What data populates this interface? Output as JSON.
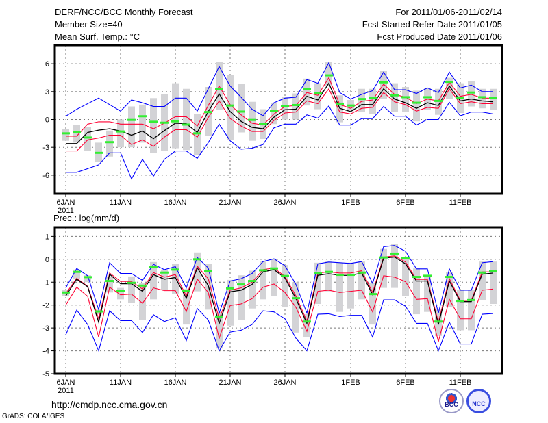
{
  "header": {
    "title": "DERF/NCC/BCC Monthly Forecast",
    "member_size": "Member Size=40",
    "variable": "Mean Surf. Temp.: °C",
    "period": "For 2011/01/06-2011/02/14",
    "started": "Fcst Started Refer Date 2011/01/05",
    "produced": "Fcst Produced Date 2011/01/06"
  },
  "footer": {
    "url": "http://cmdp.ncc.cma.gov.cn",
    "credit": "GrADS: COLA/IGES",
    "logo_bcc": "BCC",
    "logo_ncc": "NCC"
  },
  "colors": {
    "mean": "#000000",
    "spread": "#ff0033",
    "extreme": "#0000ff",
    "obs": "#33ee33",
    "box": "#d3d3d6"
  },
  "chart_data": [
    {
      "type": "line",
      "title": "Mean Surf. Temp.: °C",
      "ylabel": "",
      "ylim": [
        -8,
        8
      ],
      "yticks": [
        -6,
        -3,
        0,
        3,
        6
      ],
      "xtick_labels": [
        "6JAN",
        "11JAN",
        "16JAN",
        "21JAN",
        "26JAN",
        "1FEB",
        "6FEB",
        "11FEB"
      ],
      "xtick_days": [
        0,
        5,
        10,
        15,
        20,
        26,
        31,
        36
      ],
      "year_label": "2011",
      "grid": true,
      "series": [
        {
          "name": "max",
          "color": "extreme",
          "values": [
            0.35,
            1.1,
            1.7,
            2.3,
            1.6,
            0.9,
            2.1,
            1.8,
            1.4,
            1.4,
            2.3,
            2.3,
            0.9,
            3.3,
            5.7,
            3.6,
            2.4,
            1.1,
            0.4,
            1.8,
            2.3,
            2.4,
            4.3,
            3.9,
            6.1,
            2.9,
            2.2,
            2.7,
            3.1,
            5.1,
            3.2,
            3.2,
            2.8,
            3.4,
            2.9,
            5.1,
            3.4,
            3.7,
            3.0,
            3.0
          ]
        },
        {
          "name": "mean+sd",
          "color": "spread",
          "values": [
            -1.8,
            -1.8,
            -0.5,
            -0.25,
            -0.25,
            -0.5,
            -0.5,
            -0.5,
            -1.0,
            -0.4,
            0.3,
            0.3,
            -0.7,
            1.5,
            3.6,
            1.6,
            0.5,
            -0.4,
            -0.6,
            0.6,
            1.4,
            1.5,
            2.9,
            2.6,
            4.5,
            1.6,
            1.2,
            1.95,
            2.1,
            3.8,
            2.7,
            2.4,
            1.7,
            2.2,
            2.0,
            4.0,
            2.5,
            2.7,
            2.3,
            2.3
          ]
        },
        {
          "name": "mean",
          "color": "mean",
          "values": [
            -2.6,
            -2.6,
            -1.4,
            -1.15,
            -1.0,
            -1.25,
            -1.7,
            -1.25,
            -2.07,
            -1.2,
            -0.4,
            -0.45,
            -1.4,
            0.85,
            2.75,
            0.85,
            -0.2,
            -0.85,
            -1.0,
            0.25,
            1.05,
            1.1,
            2.5,
            2.1,
            3.9,
            1.2,
            0.85,
            1.6,
            1.6,
            3.3,
            2.2,
            1.8,
            1.2,
            1.8,
            1.5,
            3.6,
            2.0,
            2.2,
            2.0,
            1.9
          ]
        },
        {
          "name": "mean-sd",
          "color": "spread",
          "values": [
            -3.4,
            -3.4,
            -2.2,
            -2.0,
            -1.7,
            -1.7,
            -2.7,
            -2.2,
            -2.9,
            -1.9,
            -1.1,
            -1.1,
            -1.9,
            0.2,
            2.0,
            0.1,
            -0.7,
            -1.3,
            -1.3,
            -0.1,
            0.7,
            0.8,
            2.0,
            1.7,
            3.3,
            0.8,
            0.6,
            1.2,
            1.3,
            2.9,
            1.9,
            1.6,
            0.9,
            1.3,
            1.2,
            3.3,
            1.7,
            1.9,
            1.7,
            1.7
          ]
        },
        {
          "name": "min",
          "color": "extreme",
          "values": [
            -5.7,
            -5.7,
            -5.3,
            -4.9,
            -3.6,
            -3.6,
            -6.4,
            -4.3,
            -6.1,
            -4.3,
            -3.4,
            -3.4,
            -4.2,
            -2.5,
            -0.5,
            -2.3,
            -3.2,
            -3.1,
            -2.7,
            -0.9,
            -0.5,
            -0.5,
            0.5,
            0.15,
            1.45,
            -0.6,
            -0.6,
            0.1,
            0.1,
            1.4,
            0.35,
            0.35,
            -0.6,
            0.0,
            0.0,
            1.85,
            0.4,
            0.8,
            0.8,
            0.6
          ]
        }
      ],
      "markers": [
        -1.5,
        -1.4,
        -1.95,
        -3.6,
        -2.45,
        -1.3,
        -0.05,
        0.35,
        -0.25,
        -0.35,
        -0.2,
        -0.55,
        -1.5,
        0.8,
        3.3,
        1.5,
        0.85,
        -0.05,
        -0.5,
        0.95,
        1.4,
        1.55,
        3.3,
        2.8,
        4.75,
        1.7,
        1.5,
        2.2,
        2.3,
        4.0,
        2.6,
        2.4,
        1.8,
        2.4,
        2.0,
        4.05,
        2.3,
        2.9,
        2.4,
        2.3
      ],
      "ranges": [
        [
          -2.3,
          -1.0
        ],
        [
          -2.5,
          -0.6
        ],
        [
          -3.4,
          -0.8
        ],
        [
          -4.6,
          -2.5
        ],
        [
          -4.0,
          -1.2
        ],
        [
          -3.0,
          0.0
        ],
        [
          -3.0,
          1.4
        ],
        [
          -2.5,
          1.6
        ],
        [
          -3.6,
          2.3
        ],
        [
          -3.4,
          2.7
        ],
        [
          -3.1,
          3.9
        ],
        [
          -3.3,
          3.3
        ],
        [
          -3.8,
          0.6
        ],
        [
          -1.8,
          3.5
        ],
        [
          1.0,
          6.2
        ],
        [
          -2.2,
          4.8
        ],
        [
          -1.4,
          3.8
        ],
        [
          -2.3,
          1.9
        ],
        [
          -2.1,
          1.1
        ],
        [
          -0.5,
          1.8
        ],
        [
          0.0,
          2.4
        ],
        [
          0.0,
          2.8
        ],
        [
          1.5,
          4.4
        ],
        [
          1.1,
          3.9
        ],
        [
          3.6,
          6.2
        ],
        [
          -0.3,
          2.6
        ],
        [
          0.9,
          2.1
        ],
        [
          0.8,
          3.3
        ],
        [
          0.6,
          3.3
        ],
        [
          2.2,
          5.2
        ],
        [
          0.8,
          3.9
        ],
        [
          0.8,
          3.5
        ],
        [
          -0.2,
          3.1
        ],
        [
          1.0,
          3.4
        ],
        [
          0.5,
          3.3
        ],
        [
          2.2,
          4.5
        ],
        [
          0.7,
          3.9
        ],
        [
          1.4,
          4.1
        ],
        [
          1.2,
          3.3
        ],
        [
          1.0,
          3.3
        ]
      ]
    },
    {
      "type": "line",
      "title": "Prec.: log(mm/d)",
      "ylabel": "",
      "ylim": [
        -5,
        1.4
      ],
      "yticks": [
        -5,
        -4,
        -3,
        -2,
        -1,
        0,
        1
      ],
      "xtick_labels": [
        "6JAN",
        "11JAN",
        "16JAN",
        "21JAN",
        "26JAN",
        "1FEB",
        "6FEB",
        "11FEB"
      ],
      "xtick_days": [
        0,
        5,
        10,
        15,
        20,
        26,
        31,
        36
      ],
      "year_label": "2011",
      "grid": true,
      "series": [
        {
          "name": "max",
          "color": "extreme",
          "values": [
            -1.25,
            -0.4,
            -0.72,
            -2.2,
            -0.15,
            -0.62,
            -0.62,
            -0.92,
            -0.22,
            -0.45,
            -0.32,
            -1.25,
            0.08,
            -0.38,
            -2.35,
            -0.95,
            -0.85,
            -0.62,
            -0.1,
            0.02,
            -0.28,
            -1.1,
            -2.35,
            -0.2,
            -0.12,
            -0.15,
            -0.18,
            -0.1,
            -1.05,
            0.55,
            0.6,
            0.35,
            -0.42,
            -0.42,
            -2.35,
            -0.42,
            -1.35,
            -1.35,
            -0.15,
            -0.1
          ]
        },
        {
          "name": "mean+sd",
          "color": "spread",
          "values": [
            -1.5,
            -0.83,
            -1.18,
            -2.6,
            -0.6,
            -0.97,
            -0.97,
            -1.3,
            -0.58,
            -0.78,
            -0.67,
            -1.6,
            -0.3,
            -0.85,
            -2.6,
            -1.35,
            -1.25,
            -1.0,
            -0.45,
            -0.38,
            -0.75,
            -1.6,
            -2.7,
            -0.6,
            -0.55,
            -0.6,
            -0.6,
            -0.5,
            -1.45,
            0.1,
            0.15,
            -0.12,
            -0.88,
            -0.88,
            -2.75,
            -0.85,
            -1.8,
            -1.8,
            -0.55,
            -0.55
          ]
        },
        {
          "name": "mean",
          "color": "mean",
          "values": [
            -1.6,
            -0.87,
            -1.2,
            -2.75,
            -0.65,
            -1.07,
            -1.07,
            -1.4,
            -0.67,
            -0.87,
            -0.8,
            -1.7,
            -0.37,
            -1.15,
            -2.8,
            -1.42,
            -1.35,
            -1.1,
            -0.55,
            -0.45,
            -0.82,
            -1.72,
            -2.8,
            -0.7,
            -0.63,
            -0.7,
            -0.7,
            -0.6,
            -1.55,
            0.05,
            0.1,
            -0.2,
            -0.95,
            -0.95,
            -2.85,
            -0.95,
            -1.85,
            -1.85,
            -0.65,
            -0.6
          ]
        },
        {
          "name": "mean-sd",
          "color": "spread",
          "values": [
            -2.0,
            -1.22,
            -1.62,
            -3.4,
            -1.22,
            -1.55,
            -1.52,
            -1.92,
            -1.25,
            -1.37,
            -1.37,
            -2.28,
            -0.87,
            -1.45,
            -3.45,
            -2.02,
            -1.95,
            -1.72,
            -1.22,
            -1.08,
            -1.45,
            -2.1,
            -3.15,
            -1.4,
            -1.35,
            -1.45,
            -1.4,
            -1.35,
            -2.3,
            -0.72,
            -0.78,
            -0.98,
            -1.75,
            -1.72,
            -3.6,
            -1.75,
            -2.6,
            -2.6,
            -1.35,
            -1.3
          ]
        },
        {
          "name": "min",
          "color": "extreme",
          "values": [
            -3.3,
            -2.22,
            -2.85,
            -4.0,
            -2.25,
            -2.68,
            -2.68,
            -3.2,
            -2.42,
            -2.72,
            -2.55,
            -3.55,
            -2.15,
            -2.65,
            -4.0,
            -3.18,
            -3.1,
            -2.85,
            -2.25,
            -2.3,
            -2.6,
            -3.45,
            -4.0,
            -2.4,
            -2.38,
            -2.5,
            -2.45,
            -2.45,
            -3.4,
            -1.77,
            -1.77,
            -2.05,
            -2.8,
            -2.8,
            -4.0,
            -2.75,
            -3.7,
            -3.7,
            -2.4,
            -2.37
          ]
        }
      ],
      "markers": [
        -1.45,
        -0.55,
        -0.78,
        -2.28,
        -0.95,
        -1.38,
        -1.03,
        -1.15,
        -0.35,
        -0.58,
        -0.45,
        -1.38,
        0.0,
        -0.5,
        -2.5,
        -1.27,
        -1.1,
        -0.95,
        -0.48,
        -0.4,
        -0.73,
        -1.7,
        -2.72,
        -0.62,
        -0.55,
        -0.68,
        -0.68,
        -0.58,
        -1.52,
        0.08,
        0.25,
        0.05,
        -0.77,
        -0.72,
        -2.72,
        -0.77,
        -1.82,
        -1.78,
        -0.58,
        -0.52
      ],
      "ranges": [
        [
          -1.6,
          -1.35
        ],
        [
          -0.85,
          -0.45
        ],
        [
          -1.0,
          -0.7
        ],
        [
          -2.4,
          -2.2
        ],
        [
          -1.45,
          -0.75
        ],
        [
          -1.75,
          -1.25
        ],
        [
          -1.9,
          -0.75
        ],
        [
          -2.65,
          -1.05
        ],
        [
          -1.75,
          -0.12
        ],
        [
          -1.35,
          -0.45
        ],
        [
          -1.5,
          -0.2
        ],
        [
          -2.85,
          -1.3
        ],
        [
          -1.4,
          0.3
        ],
        [
          -2.2,
          -0.2
        ],
        [
          -3.9,
          -2.3
        ],
        [
          -2.9,
          -0.9
        ],
        [
          -2.65,
          -0.7
        ],
        [
          -2.15,
          -0.5
        ],
        [
          -1.75,
          -0.1
        ],
        [
          -1.6,
          0.0
        ],
        [
          -2.1,
          -0.25
        ],
        [
          -3.2,
          -1.0
        ],
        [
          -3.4,
          -2.4
        ],
        [
          -1.95,
          -0.15
        ],
        [
          -1.4,
          -0.1
        ],
        [
          -2.3,
          -0.15
        ],
        [
          -2.15,
          -0.15
        ],
        [
          -1.75,
          -0.1
        ],
        [
          -2.85,
          -1.05
        ],
        [
          -1.25,
          0.45
        ],
        [
          -1.25,
          0.65
        ],
        [
          -1.6,
          0.1
        ],
        [
          -2.4,
          -0.4
        ],
        [
          -2.3,
          -0.7
        ],
        [
          -3.35,
          -2.2
        ],
        [
          -2.1,
          -0.55
        ],
        [
          -3.1,
          -1.35
        ],
        [
          -3.1,
          -1.35
        ],
        [
          -1.8,
          -0.1
        ],
        [
          -1.95,
          -0.1
        ]
      ]
    }
  ]
}
